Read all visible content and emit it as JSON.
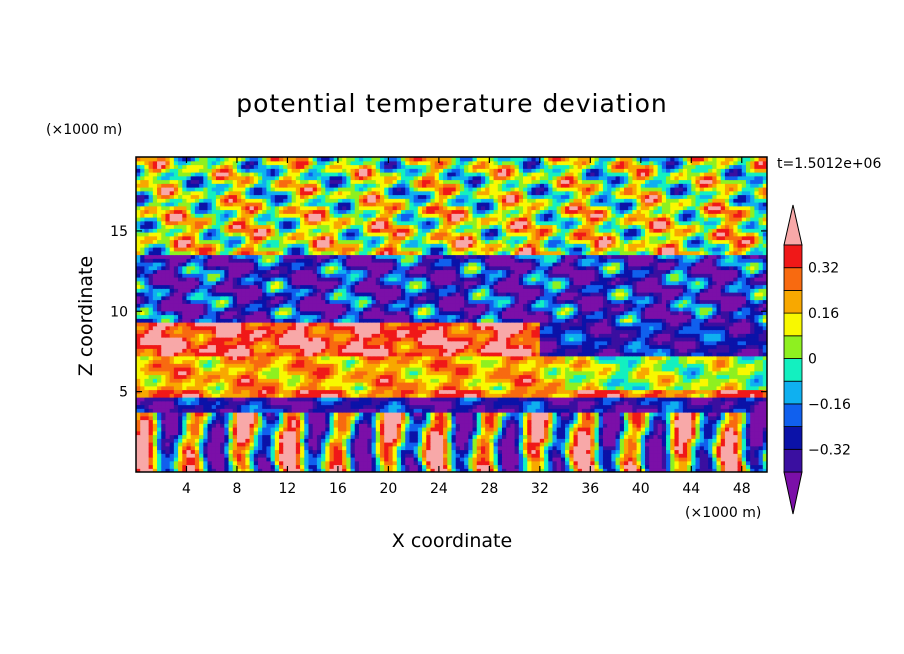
{
  "chart_data": {
    "type": "heatmap",
    "title": "potential temperature deviation",
    "xlabel": "X coordinate",
    "ylabel": "Z coordinate",
    "x_units": "(×1000 m)",
    "y_units": "(×1000 m)",
    "time_label": "t=1.5012e+06",
    "xlim": [
      0,
      50
    ],
    "ylim": [
      0,
      19.6
    ],
    "x_ticks": [
      4,
      8,
      12,
      16,
      20,
      24,
      28,
      32,
      36,
      40,
      44,
      48
    ],
    "x_tick_labels": [
      "4",
      "8",
      "12",
      "16",
      "20",
      "24",
      "28",
      "32",
      "36",
      "40",
      "44",
      "48"
    ],
    "y_ticks": [
      5,
      10,
      15
    ],
    "y_tick_labels": [
      "5",
      "10",
      "15"
    ],
    "colorbar": {
      "levels": [
        -0.4,
        -0.32,
        -0.24,
        -0.16,
        -0.08,
        0,
        0.08,
        0.16,
        0.24,
        0.32,
        0.4
      ],
      "tick_values": [
        0.32,
        0.16,
        0,
        -0.16,
        -0.32
      ],
      "tick_labels": [
        "0.32",
        "0.16",
        "0",
        "−0.16",
        "−0.32"
      ],
      "colors": [
        "#7b0fa8",
        "#3a0fa0",
        "#0b12a8",
        "#1060ee",
        "#0fb0f0",
        "#13f0c0",
        "#8ef020",
        "#f8f800",
        "#f8a800",
        "#f86a10",
        "#f01818",
        "#f8a8a8"
      ],
      "extend": "both"
    },
    "bands": [
      {
        "z_range": [
          0,
          3.8
        ],
        "pattern": "vertical convective plumes (-0.4 to 0.4)"
      },
      {
        "z_range": [
          3.8,
          4.6
        ],
        "mean": -0.32
      },
      {
        "z_range": [
          4.6,
          5.2
        ],
        "mean": 0.28
      },
      {
        "z_range": [
          5.2,
          7.3
        ],
        "mean": 0.2
      },
      {
        "z_range": [
          7.3,
          9.3
        ],
        "mean": 0.36
      },
      {
        "z_range": [
          9.3,
          13.5
        ],
        "mean": -0.3
      },
      {
        "z_range": [
          13.5,
          16.5
        ],
        "mean": 0.1
      },
      {
        "z_range": [
          16.5,
          19.6
        ],
        "mean": 0.04
      }
    ]
  }
}
